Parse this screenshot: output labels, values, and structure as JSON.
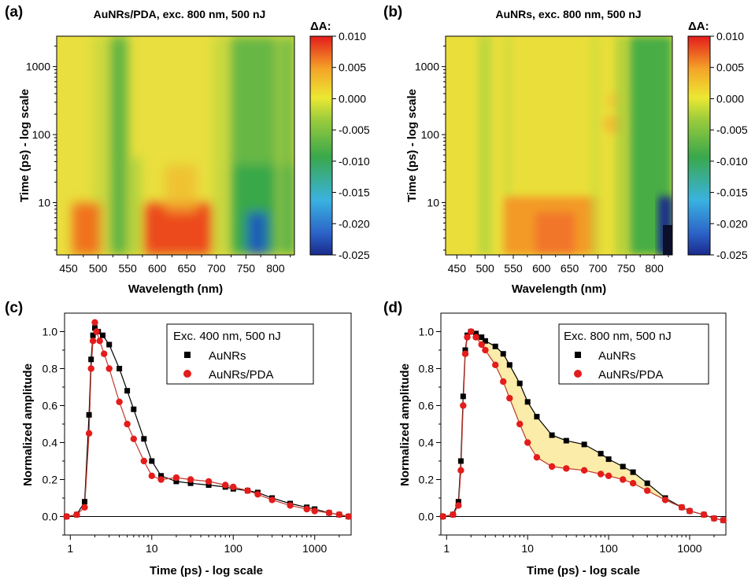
{
  "panel_labels": [
    "(a)",
    "(b)",
    "(c)",
    "(d)"
  ],
  "colors": {
    "red": "#e41c1c",
    "yellow_fill": "#fbeaa0",
    "axis": "#000000"
  },
  "chart_data": [
    {
      "type": "heatmap",
      "panel": "(a)",
      "title": "AuNRs/PDA, exc. 800 nm, 500 nJ",
      "xlabel": "Wavelength (nm)",
      "ylabel": "Time (ps) - log scale",
      "xlim": [
        430,
        832
      ],
      "ylim": [
        1.7,
        2800
      ],
      "yscale": "log",
      "x_ticks": [
        "450",
        "500",
        "550",
        "600",
        "650",
        "700",
        "750",
        "800"
      ],
      "y_ticks": [
        "10",
        "100",
        "1000"
      ],
      "colorbar": {
        "label": "ΔA:",
        "range": [
          -0.025,
          0.01
        ],
        "ticks": [
          "0.010",
          "0.005",
          "0.000",
          "-0.005",
          "-0.010",
          "-0.015",
          "-0.020",
          "-0.025"
        ]
      },
      "regions": [
        {
          "wavelength": [
            455,
            500
          ],
          "time": [
            1.7,
            10
          ],
          "dA": 0.006
        },
        {
          "wavelength": [
            500,
            540
          ],
          "time": [
            1.7,
            2800
          ],
          "dA": -0.004
        },
        {
          "wavelength": [
            560,
            700
          ],
          "time": [
            1.7,
            10
          ],
          "dA": 0.007
        },
        {
          "wavelength": [
            730,
            830
          ],
          "time": [
            1.7,
            2800
          ],
          "dA": -0.008
        },
        {
          "wavelength": [
            745,
            790
          ],
          "time": [
            1.7,
            4
          ],
          "dA": -0.022
        }
      ]
    },
    {
      "type": "heatmap",
      "panel": "(b)",
      "title": "AuNRs, exc. 800 nm, 500 nJ",
      "xlabel": "Wavelength (nm)",
      "ylabel": "Time (ps) - log scale",
      "xlim": [
        430,
        832
      ],
      "ylim": [
        1.7,
        2800
      ],
      "yscale": "log",
      "x_ticks": [
        "450",
        "500",
        "550",
        "600",
        "650",
        "700",
        "750",
        "800"
      ],
      "y_ticks": [
        "10",
        "100",
        "1000"
      ],
      "colorbar": {
        "label": "ΔA:",
        "range": [
          -0.025,
          0.01
        ],
        "ticks": [
          "0.010",
          "0.005",
          "0.000",
          "-0.005",
          "-0.010",
          "-0.015",
          "-0.020",
          "-0.025"
        ]
      },
      "regions": [
        {
          "wavelength": [
            500,
            530
          ],
          "time": [
            1.7,
            2800
          ],
          "dA": -0.003
        },
        {
          "wavelength": [
            580,
            720
          ],
          "time": [
            1.7,
            10
          ],
          "dA": 0.005
        },
        {
          "wavelength": [
            760,
            830
          ],
          "time": [
            1.7,
            2800
          ],
          "dA": -0.009
        },
        {
          "wavelength": [
            815,
            830
          ],
          "time": [
            1.7,
            10
          ],
          "dA": -0.024
        }
      ]
    },
    {
      "type": "scatter",
      "panel": "(c)",
      "xlabel": "Time (ps) - log scale",
      "ylabel": "Normalized amplitude",
      "xscale": "log",
      "xlim": [
        0.85,
        2800
      ],
      "ylim": [
        -0.1,
        1.1
      ],
      "x_ticks": [
        "1",
        "10",
        "100",
        "1000"
      ],
      "y_ticks": [
        "0.0",
        "0.2",
        "0.4",
        "0.6",
        "0.8",
        "1.0"
      ],
      "legend": {
        "title": "Exc. 400 nm, 500 nJ",
        "position": "top-right"
      },
      "series": [
        {
          "name": "AuNRs",
          "marker": "square",
          "color": "#000000",
          "x": [
            0.9,
            1.2,
            1.5,
            1.7,
            1.8,
            1.9,
            2.0,
            2.2,
            2.5,
            3,
            4,
            5,
            6,
            8,
            10,
            13,
            20,
            30,
            50,
            80,
            100,
            150,
            200,
            300,
            500,
            800,
            1000,
            1500,
            2000,
            2600
          ],
          "y": [
            0.0,
            0.01,
            0.08,
            0.55,
            0.85,
            0.98,
            1.02,
            1.0,
            0.98,
            0.93,
            0.8,
            0.68,
            0.58,
            0.42,
            0.3,
            0.22,
            0.19,
            0.18,
            0.17,
            0.16,
            0.15,
            0.14,
            0.13,
            0.1,
            0.07,
            0.05,
            0.04,
            0.02,
            0.01,
            0.0
          ]
        },
        {
          "name": "AuNRs/PDA",
          "marker": "circle",
          "color": "#e41c1c",
          "x": [
            0.9,
            1.2,
            1.5,
            1.7,
            1.8,
            1.9,
            2.0,
            2.1,
            2.3,
            2.6,
            3,
            4,
            5,
            6,
            8,
            10,
            13,
            20,
            30,
            50,
            80,
            100,
            150,
            200,
            300,
            500,
            800,
            1000,
            1500,
            2000,
            2600
          ],
          "y": [
            0.0,
            0.01,
            0.05,
            0.45,
            0.8,
            0.95,
            1.05,
            1.0,
            0.95,
            0.88,
            0.8,
            0.62,
            0.5,
            0.42,
            0.3,
            0.22,
            0.2,
            0.21,
            0.2,
            0.19,
            0.17,
            0.16,
            0.14,
            0.12,
            0.09,
            0.06,
            0.04,
            0.03,
            0.02,
            0.01,
            0.0
          ]
        }
      ]
    },
    {
      "type": "scatter",
      "panel": "(d)",
      "xlabel": "Time (ps) - log scale",
      "ylabel": "Normalized amplitude",
      "xscale": "log",
      "xlim": [
        0.85,
        2800
      ],
      "ylim": [
        -0.1,
        1.1
      ],
      "x_ticks": [
        "1",
        "10",
        "100",
        "1000"
      ],
      "y_ticks": [
        "0.0",
        "0.2",
        "0.4",
        "0.6",
        "0.8",
        "1.0"
      ],
      "legend": {
        "title": "Exc. 800 nm, 500 nJ",
        "position": "top-right"
      },
      "series": [
        {
          "name": "AuNRs",
          "marker": "square",
          "color": "#000000",
          "x": [
            0.9,
            1.2,
            1.4,
            1.5,
            1.6,
            1.7,
            1.8,
            2.0,
            2.3,
            2.7,
            3,
            4,
            5,
            6,
            8,
            10,
            13,
            20,
            30,
            50,
            80,
            100,
            150,
            200,
            300,
            500,
            800,
            1000,
            1500,
            2000,
            2600
          ],
          "y": [
            0.0,
            0.01,
            0.08,
            0.3,
            0.65,
            0.9,
            0.98,
            1.0,
            0.99,
            0.97,
            0.95,
            0.92,
            0.88,
            0.82,
            0.72,
            0.62,
            0.54,
            0.44,
            0.41,
            0.39,
            0.34,
            0.31,
            0.27,
            0.24,
            0.18,
            0.1,
            0.05,
            0.03,
            0.01,
            -0.01,
            -0.02
          ]
        },
        {
          "name": "AuNRs/PDA",
          "marker": "circle",
          "color": "#e41c1c",
          "x": [
            0.9,
            1.2,
            1.4,
            1.5,
            1.6,
            1.7,
            1.8,
            2.0,
            2.3,
            2.7,
            3,
            4,
            5,
            6,
            8,
            10,
            13,
            20,
            30,
            50,
            80,
            100,
            150,
            200,
            300,
            500,
            800,
            1000,
            1500,
            2000,
            2600
          ],
          "y": [
            0.0,
            0.01,
            0.06,
            0.25,
            0.6,
            0.88,
            0.97,
            1.0,
            0.97,
            0.93,
            0.9,
            0.82,
            0.73,
            0.64,
            0.5,
            0.4,
            0.32,
            0.27,
            0.26,
            0.25,
            0.23,
            0.22,
            0.2,
            0.18,
            0.14,
            0.09,
            0.05,
            0.03,
            0.01,
            -0.01,
            -0.02
          ]
        }
      ]
    }
  ]
}
